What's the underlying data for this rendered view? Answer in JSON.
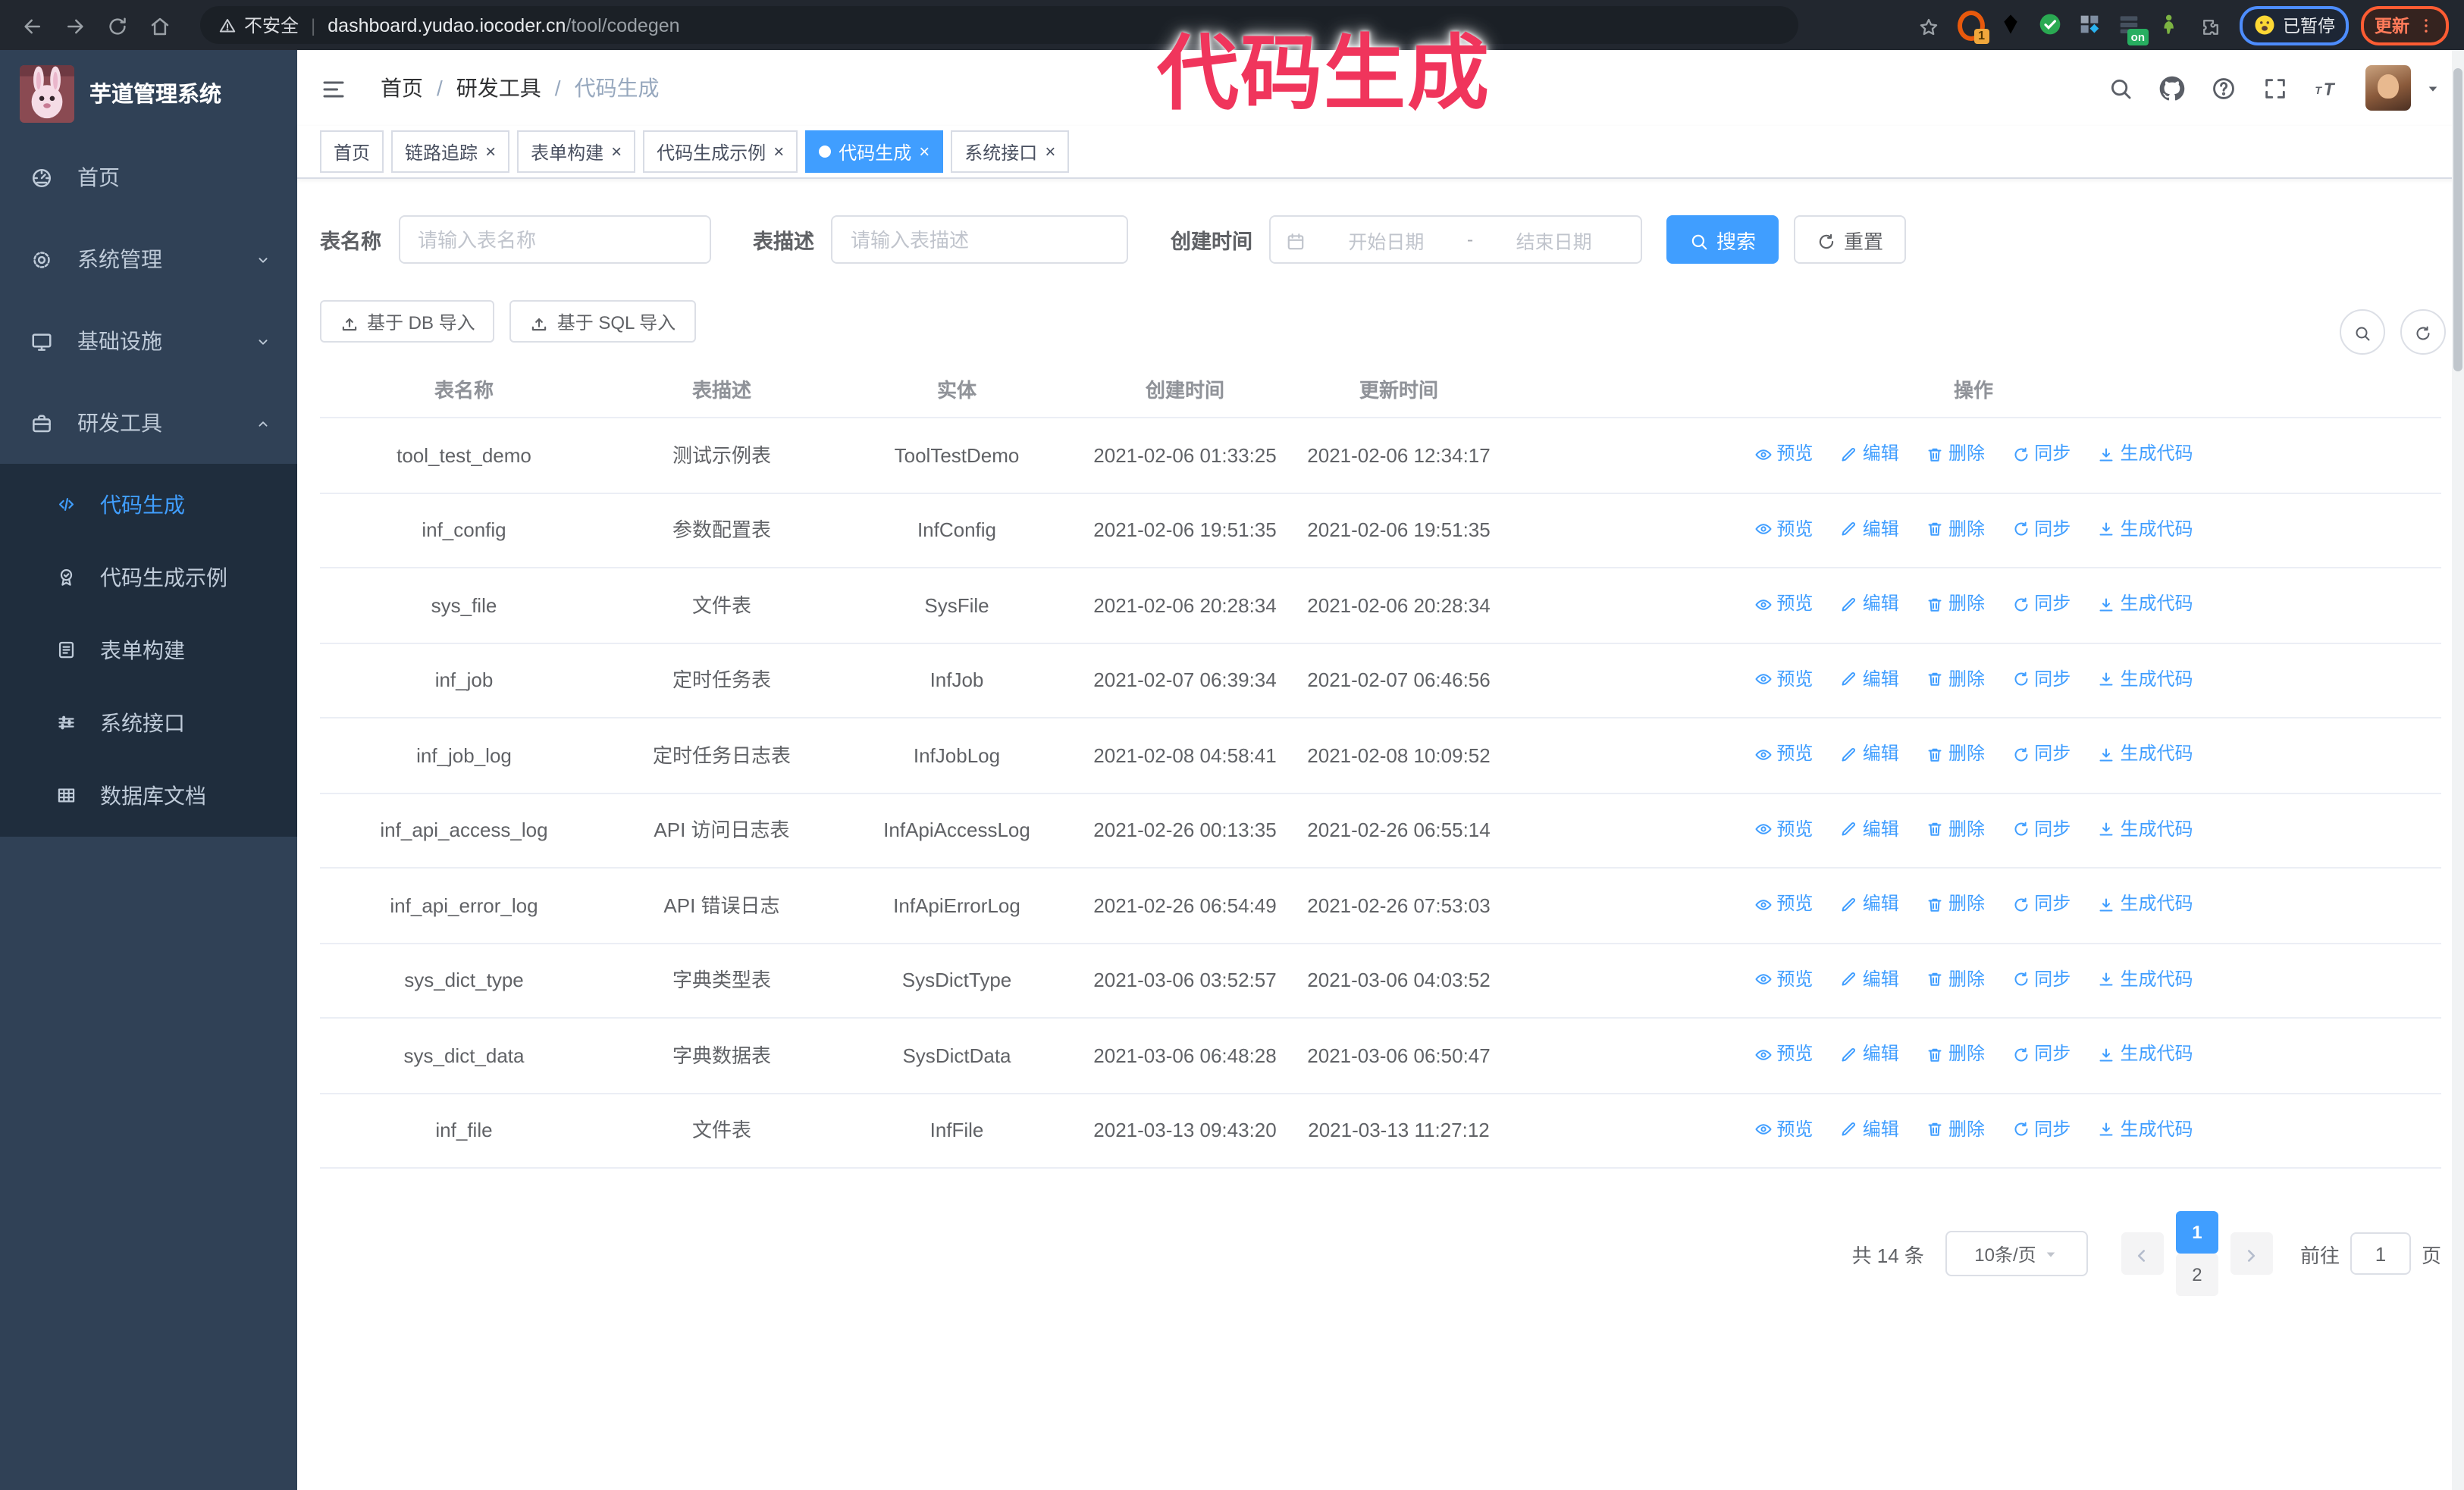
{
  "watermark": {
    "text": "代码生成"
  },
  "browser": {
    "security_label": "不安全",
    "url_host": "dashboard.yudao.iocoder.cn",
    "url_path": "/tool/codegen",
    "ext_badge": "1",
    "ext_on": "on",
    "paused_label": "已暂停",
    "update_label": "更新"
  },
  "sidebar": {
    "app_title": "芋道管理系统",
    "menu": [
      {
        "icon": "dashboard-icon",
        "label": "首页"
      },
      {
        "icon": "gear-icon",
        "label": "系统管理",
        "chevron": "chev-down-icon"
      },
      {
        "icon": "monitor-icon",
        "label": "基础设施",
        "chevron": "chev-down-icon"
      },
      {
        "icon": "suitcase-icon",
        "label": "研发工具",
        "chevron": "chev-up-icon"
      }
    ],
    "submenu": [
      {
        "icon": "code-icon",
        "label": "代码生成",
        "active": true
      },
      {
        "icon": "medal-icon",
        "label": "代码生成示例"
      },
      {
        "icon": "form-icon",
        "label": "表单构建"
      },
      {
        "icon": "sliders-icon",
        "label": "系统接口"
      },
      {
        "icon": "dbgrid-icon",
        "label": "数据库文档"
      }
    ]
  },
  "header": {
    "breadcrumb": [
      "首页",
      "研发工具",
      "代码生成"
    ],
    "separator": "/"
  },
  "tabsbar": {
    "tabs": [
      {
        "label": "首页",
        "closable": false
      },
      {
        "label": "链路追踪",
        "closable": true
      },
      {
        "label": "表单构建",
        "closable": true
      },
      {
        "label": "代码生成示例",
        "closable": true
      },
      {
        "label": "代码生成",
        "closable": true,
        "active": true
      },
      {
        "label": "系统接口",
        "closable": true
      }
    ]
  },
  "filters": {
    "table_name_label": "表名称",
    "table_name_placeholder": "请输入表名称",
    "table_desc_label": "表描述",
    "table_desc_placeholder": "请输入表描述",
    "create_time_label": "创建时间",
    "start_placeholder": "开始日期",
    "range_separator": "-",
    "end_placeholder": "结束日期",
    "search_label": "搜索",
    "reset_label": "重置"
  },
  "toolbar": {
    "db_import_label": "基于 DB 导入",
    "sql_import_label": "基于 SQL 导入"
  },
  "table": {
    "columns": [
      "表名称",
      "表描述",
      "实体",
      "创建时间",
      "更新时间",
      "操作"
    ],
    "actions": [
      {
        "icon": "eye-icon",
        "label": "预览"
      },
      {
        "icon": "edit-icon",
        "label": "编辑"
      },
      {
        "icon": "trash-icon",
        "label": "删除"
      },
      {
        "icon": "sync-icon",
        "label": "同步"
      },
      {
        "icon": "download-icon",
        "label": "生成代码"
      }
    ],
    "rows": [
      {
        "name": "tool_test_demo",
        "desc": "测试示例表",
        "entity": "ToolTestDemo",
        "created": "2021-02-06 01:33:25",
        "updated": "2021-02-06 12:34:17"
      },
      {
        "name": "inf_config",
        "desc": "参数配置表",
        "entity": "InfConfig",
        "created": "2021-02-06 19:51:35",
        "updated": "2021-02-06 19:51:35"
      },
      {
        "name": "sys_file",
        "desc": "文件表",
        "entity": "SysFile",
        "created": "2021-02-06 20:28:34",
        "updated": "2021-02-06 20:28:34"
      },
      {
        "name": "inf_job",
        "desc": "定时任务表",
        "entity": "InfJob",
        "created": "2021-02-07 06:39:34",
        "updated": "2021-02-07 06:46:56"
      },
      {
        "name": "inf_job_log",
        "desc": "定时任务日志表",
        "entity": "InfJobLog",
        "created": "2021-02-08 04:58:41",
        "updated": "2021-02-08 10:09:52"
      },
      {
        "name": "inf_api_access_log",
        "desc": "API 访问日志表",
        "entity": "InfApiAccessLog",
        "created": "2021-02-26 00:13:35",
        "updated": "2021-02-26 06:55:14"
      },
      {
        "name": "inf_api_error_log",
        "desc": "API 错误日志",
        "entity": "InfApiErrorLog",
        "created": "2021-02-26 06:54:49",
        "updated": "2021-02-26 07:53:03"
      },
      {
        "name": "sys_dict_type",
        "desc": "字典类型表",
        "entity": "SysDictType",
        "created": "2021-03-06 03:52:57",
        "updated": "2021-03-06 04:03:52"
      },
      {
        "name": "sys_dict_data",
        "desc": "字典数据表",
        "entity": "SysDictData",
        "created": "2021-03-06 06:48:28",
        "updated": "2021-03-06 06:50:47"
      },
      {
        "name": "inf_file",
        "desc": "文件表",
        "entity": "InfFile",
        "created": "2021-03-13 09:43:20",
        "updated": "2021-03-13 11:27:12"
      }
    ]
  },
  "pagination": {
    "total_text": "共 14 条",
    "page_size": "10条/页",
    "pages": [
      {
        "label": "1",
        "active": true
      },
      {
        "label": "2"
      }
    ],
    "goto_label": "前往",
    "goto_value": "1",
    "page_label": "页"
  }
}
